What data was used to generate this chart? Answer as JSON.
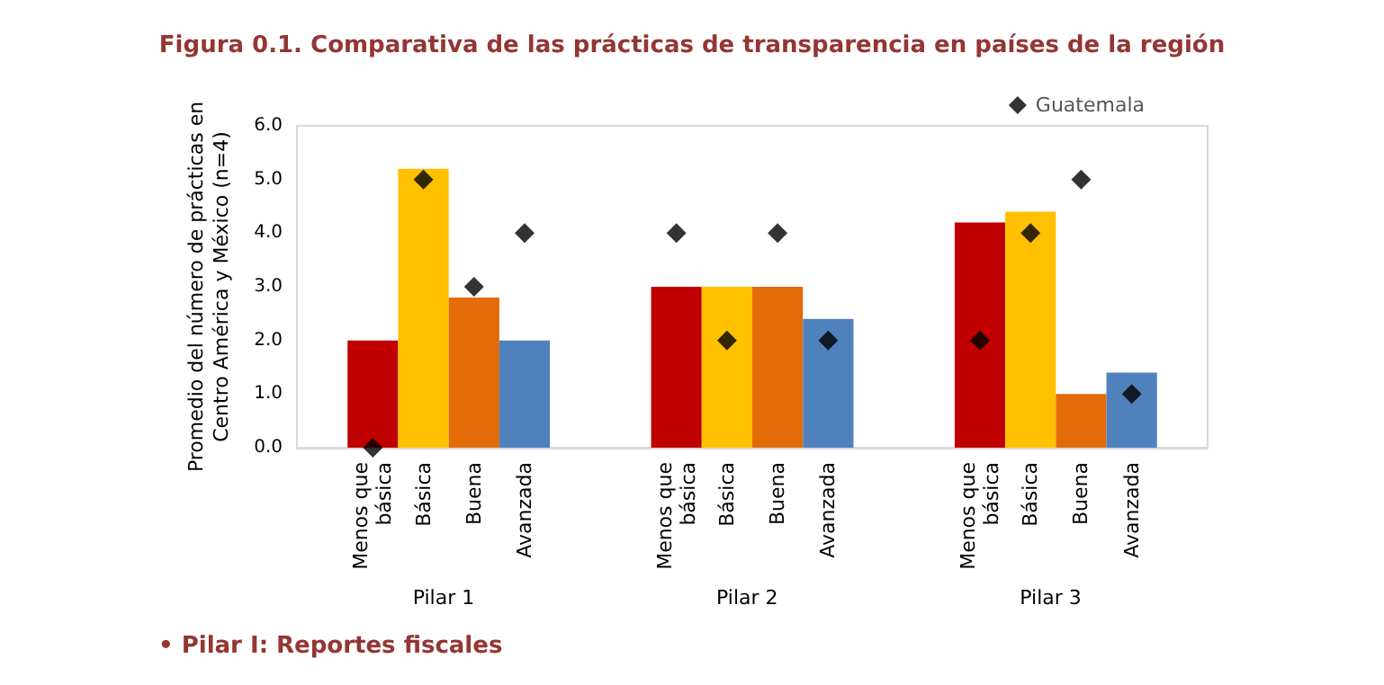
{
  "chart_data": {
    "type": "bar",
    "title": "Figura 0.1. Comparativa de las prácticas de transparencia en países de la región",
    "ylabel": "Promedio del número de prácticas en Centro América y México (n=4)",
    "categories": [
      null,
      "Menos que básica",
      "Básica",
      "Buena",
      "Avanzada",
      null,
      null,
      "Menos que básica",
      "Básica",
      "Buena",
      "Avanzada",
      null,
      null,
      "Menos que básica",
      "Básica",
      "Buena",
      "Avanzada",
      null
    ],
    "series": [
      {
        "values": [
          null,
          2.0,
          5.2,
          2.8,
          2.0,
          null,
          null,
          3.0,
          3.0,
          3.0,
          2.4,
          null,
          null,
          4.2,
          4.4,
          1.0,
          1.4,
          null
        ],
        "colors": [
          null,
          "#c00000",
          "#ffc000",
          "#e36c09",
          "#4f81bd",
          null,
          null,
          "#c00000",
          "#ffc000",
          "#e36c09",
          "#4f81bd",
          null,
          null,
          "#c00000",
          "#ffc000",
          "#e36c09",
          "#4f81bd",
          null
        ]
      },
      {
        "type": "scatter",
        "name": "Guatemala",
        "color": "#000000",
        "marker": "diamond",
        "values": [
          null,
          0,
          5,
          3,
          4,
          null,
          null,
          4,
          2,
          4,
          2,
          null,
          null,
          2,
          4,
          5,
          1,
          null
        ]
      }
    ],
    "ylim": [
      0,
      6
    ],
    "yticks": [
      {
        "value": 0,
        "label": "0.0"
      },
      {
        "value": 1,
        "label": "1.0"
      },
      {
        "value": 2,
        "label": "2.0"
      },
      {
        "value": 3,
        "label": "3.0"
      },
      {
        "value": 4,
        "label": "4.0"
      },
      {
        "value": 5,
        "label": "5.0"
      },
      {
        "value": 6,
        "label": "6.0"
      }
    ],
    "grid": false,
    "legend": "top right",
    "annotations": [
      "Pilar 1",
      "Pilar 2",
      "Pilar 3",
      "• Pilar I: Reportes fiscales"
    ]
  }
}
